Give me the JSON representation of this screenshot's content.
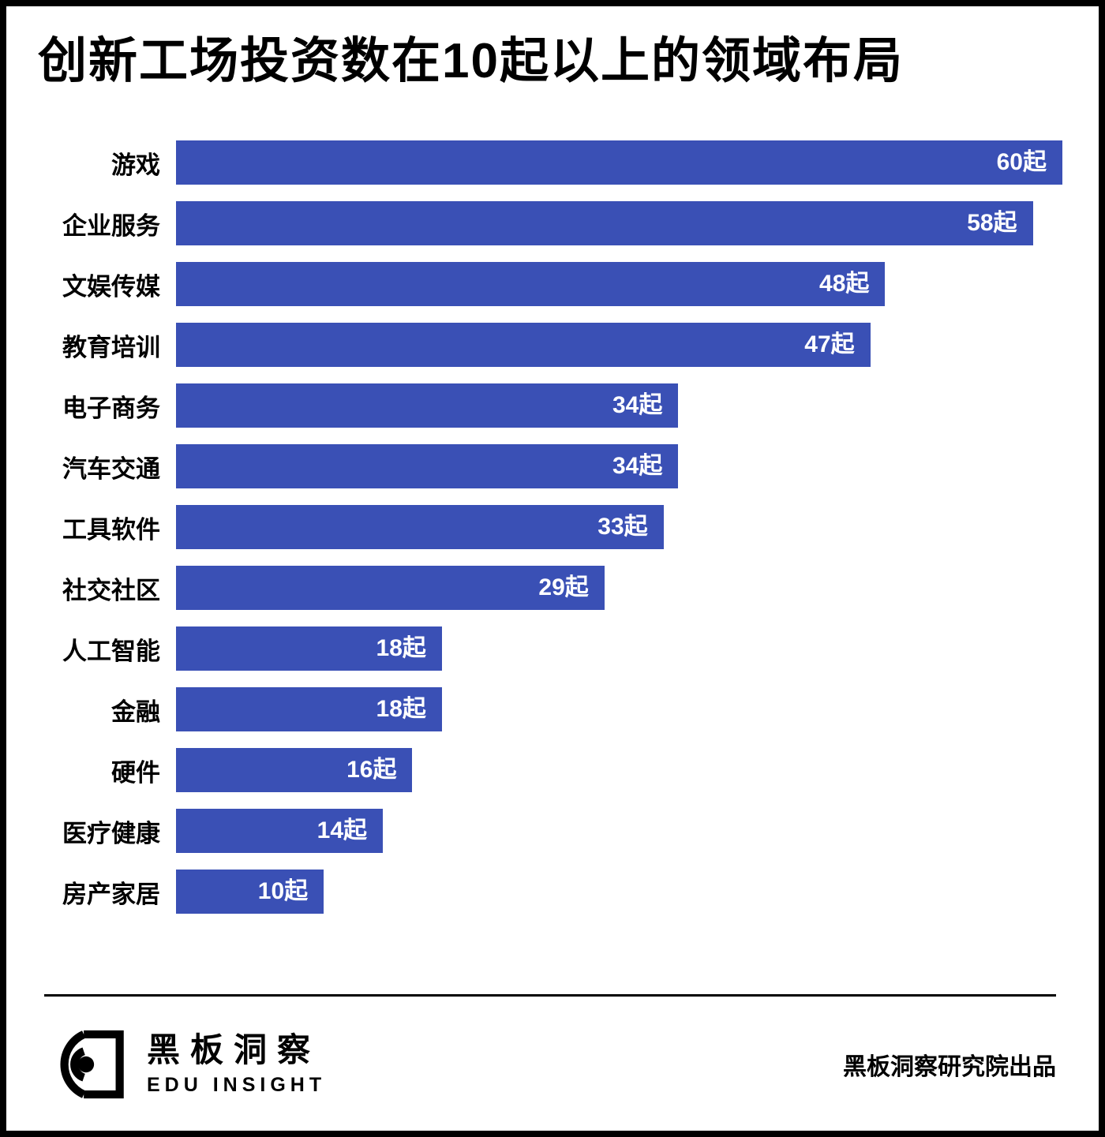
{
  "title": "创新工场投资数在10起以上的领域布局",
  "chart_data": {
    "type": "bar",
    "orientation": "horizontal",
    "title": "创新工场投资数在10起以上的领域布局",
    "categories": [
      "游戏",
      "企业服务",
      "文娱传媒",
      "教育培训",
      "电子商务",
      "汽车交通",
      "工具软件",
      "社交社区",
      "人工智能",
      "金融",
      "硬件",
      "医疗健康",
      "房产家居"
    ],
    "values": [
      60,
      58,
      48,
      47,
      34,
      34,
      33,
      29,
      18,
      18,
      16,
      14,
      10
    ],
    "unit": "起",
    "value_labels": [
      "60起",
      "58起",
      "48起",
      "47起",
      "34起",
      "34起",
      "33起",
      "29起",
      "18起",
      "18起",
      "16起",
      "14起",
      "10起"
    ],
    "xlim": [
      0,
      60
    ],
    "grid": false,
    "legend": false,
    "bar_color": "#3a50b5",
    "value_label_color": "#ffffff",
    "category_label_color": "#000000"
  },
  "footer": {
    "brand_name": "黑板洞察",
    "brand_subtitle": "EDU INSIGHT",
    "credit": "黑板洞察研究院出品",
    "logo_icon": "eye-icon"
  },
  "colors": {
    "background": "#ffffff",
    "frame_border": "#000000",
    "bar": "#3a50b5",
    "text": "#000000",
    "divider": "#000000"
  }
}
